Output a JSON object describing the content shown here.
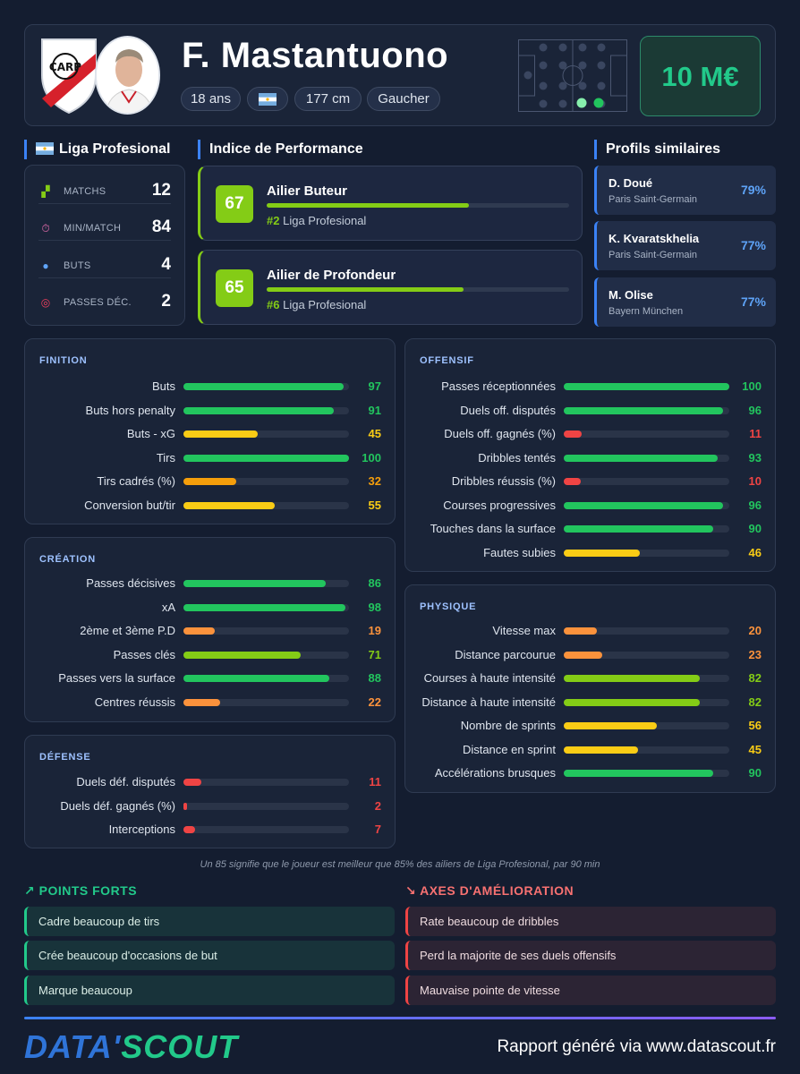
{
  "player": {
    "name": "F. Mastantuono",
    "age": "18 ans",
    "height": "177 cm",
    "foot": "Gaucher",
    "market_value": "10 M€"
  },
  "league": {
    "title": "Liga Profesional",
    "stats": [
      {
        "label": "MATCHS",
        "value": "12",
        "icon": "field-icon"
      },
      {
        "label": "MIN/MATCH",
        "value": "84",
        "icon": "stopwatch-icon"
      },
      {
        "label": "BUTS",
        "value": "4",
        "icon": "ball-icon"
      },
      {
        "label": "PASSES DÉC.",
        "value": "2",
        "icon": "target-icon"
      }
    ]
  },
  "performance": {
    "title": "Indice de Performance",
    "cards": [
      {
        "score": "67",
        "role": "Ailier Buteur",
        "rank": "#2",
        "league": "Liga Profesional",
        "fill": 0.67
      },
      {
        "score": "65",
        "role": "Ailier de Profondeur",
        "rank": "#6",
        "league": "Liga Profesional",
        "fill": 0.65
      }
    ]
  },
  "similar": {
    "title": "Profils similaires",
    "items": [
      {
        "name": "D. Doué",
        "club": "Paris Saint-Germain",
        "pct": "79%"
      },
      {
        "name": "K. Kvaratskhelia",
        "club": "Paris Saint-Germain",
        "pct": "77%"
      },
      {
        "name": "M. Olise",
        "club": "Bayern München",
        "pct": "77%"
      }
    ]
  },
  "panels": {
    "finition": {
      "title": "FINITION",
      "rows": [
        {
          "label": "Buts",
          "value": 97
        },
        {
          "label": "Buts hors penalty",
          "value": 91
        },
        {
          "label": "Buts - xG",
          "value": 45
        },
        {
          "label": "Tirs",
          "value": 100
        },
        {
          "label": "Tirs cadrés (%)",
          "value": 32
        },
        {
          "label": "Conversion but/tir",
          "value": 55
        }
      ]
    },
    "creation": {
      "title": "CRÉATION",
      "rows": [
        {
          "label": "Passes décisives",
          "value": 86
        },
        {
          "label": "xA",
          "value": 98
        },
        {
          "label": "2ème et 3ème P.D",
          "value": 19
        },
        {
          "label": "Passes clés",
          "value": 71
        },
        {
          "label": "Passes vers la surface",
          "value": 88
        },
        {
          "label": "Centres réussis",
          "value": 22
        }
      ]
    },
    "defense": {
      "title": "DÉFENSE",
      "rows": [
        {
          "label": "Duels déf. disputés",
          "value": 11
        },
        {
          "label": "Duels déf. gagnés (%)",
          "value": 2
        },
        {
          "label": "Interceptions",
          "value": 7
        }
      ]
    },
    "offensif": {
      "title": "OFFENSIF",
      "rows": [
        {
          "label": "Passes réceptionnées",
          "value": 100
        },
        {
          "label": "Duels off. disputés",
          "value": 96
        },
        {
          "label": "Duels off. gagnés (%)",
          "value": 11
        },
        {
          "label": "Dribbles tentés",
          "value": 93
        },
        {
          "label": "Dribbles réussis (%)",
          "value": 10
        },
        {
          "label": "Courses progressives",
          "value": 96
        },
        {
          "label": "Touches dans la surface",
          "value": 90
        },
        {
          "label": "Fautes subies",
          "value": 46
        }
      ]
    },
    "physique": {
      "title": "PHYSIQUE",
      "rows": [
        {
          "label": "Vitesse max",
          "value": 20
        },
        {
          "label": "Distance parcourue",
          "value": 23
        },
        {
          "label": "Courses à haute intensité",
          "value": 82
        },
        {
          "label": "Distance à haute intensité",
          "value": 82
        },
        {
          "label": "Nombre de sprints",
          "value": 56
        },
        {
          "label": "Distance en sprint",
          "value": 45
        },
        {
          "label": "Accélérations brusques",
          "value": 90
        }
      ]
    }
  },
  "footnote": "Un 85 signifie que le joueur est meilleur que 85% des ailiers de Liga Profesional, par 90 min",
  "strengths": {
    "title": "POINTS FORTS",
    "items": [
      "Cadre beaucoup de tirs",
      "Crée beaucoup d'occasions de but",
      "Marque beaucoup"
    ]
  },
  "weaknesses": {
    "title": "AXES D'AMÉLIORATION",
    "items": [
      "Rate beaucoup de dribbles",
      "Perd la majorite de ses duels offensifs",
      "Mauvaise pointe de vitesse"
    ]
  },
  "footer": {
    "brand_part1": "DATA'",
    "brand_part2": "SCOUT",
    "text": "Rapport généré via www.datascout.fr"
  },
  "colors": {
    "elite": "#22c55e",
    "good": "#84cc16",
    "average": "#facc15",
    "below": "#f59e0b",
    "low": "#fb923c",
    "poor": "#ef4444"
  }
}
